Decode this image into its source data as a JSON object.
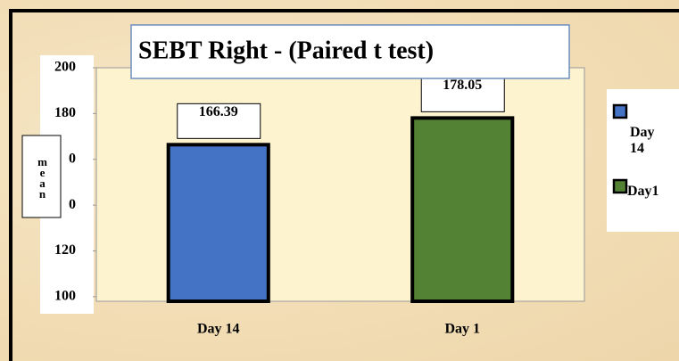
{
  "chart_data": {
    "type": "bar",
    "title": "SEBT Right - (Paired t test)",
    "ylabel": "mean",
    "categories": [
      "Day 14",
      "Day 1"
    ],
    "series": [
      {
        "name": "Day 14",
        "color": "#4472c4",
        "values": [
          166.39,
          null
        ]
      },
      {
        "name": "Day1",
        "color": "#548235",
        "values": [
          null,
          178.05
        ]
      }
    ],
    "ylim": [
      98,
      200
    ],
    "yticks": [
      200,
      180,
      {
        "value": 160,
        "label": "0"
      },
      {
        "value": 140,
        "label": "0"
      },
      120,
      100
    ],
    "grid": false,
    "legend": "right"
  }
}
